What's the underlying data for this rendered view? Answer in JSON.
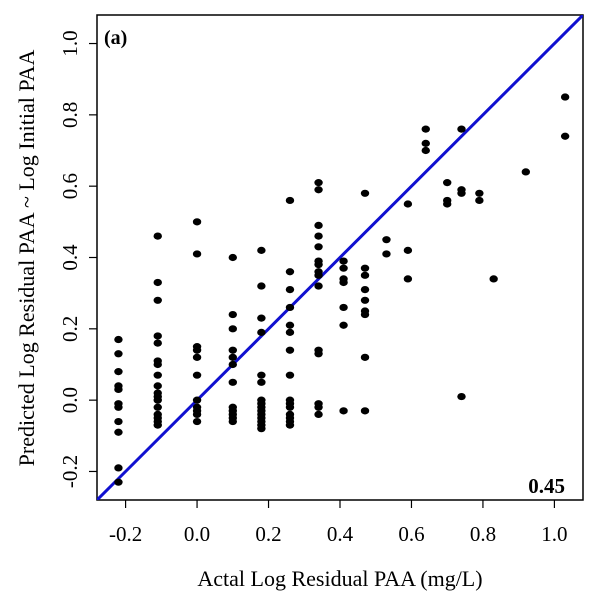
{
  "chart_data": {
    "type": "scatter",
    "panel_label": "(a)",
    "annotation": "0.45",
    "xlabel": "Actal Log Residual PAA (mg/L)",
    "ylabel": "Predicted Log Residual PAA ~ Log Initial PAA",
    "xlim": [
      -0.28,
      1.08
    ],
    "ylim": [
      -0.28,
      1.08
    ],
    "x_ticks": [
      -0.2,
      0.0,
      0.2,
      0.4,
      0.6,
      0.8,
      1.0
    ],
    "x_tick_labels": [
      "-0.2",
      "0.0",
      "0.2",
      "0.4",
      "0.6",
      "0.8",
      "1.0"
    ],
    "y_ticks": [
      -0.2,
      0.0,
      0.2,
      0.4,
      0.6,
      0.8,
      1.0
    ],
    "y_tick_labels": [
      "-0.2",
      "0.0",
      "0.2",
      "0.4",
      "0.6",
      "0.8",
      "1.0"
    ],
    "grid": false,
    "reference_line": {
      "name": "1:1 line",
      "color": "#1010d0",
      "x": [
        -0.28,
        1.08
      ],
      "y": [
        -0.28,
        1.08
      ]
    },
    "point_color": "#000000",
    "points": [
      [
        -0.22,
        0.17
      ],
      [
        -0.22,
        0.13
      ],
      [
        -0.22,
        0.08
      ],
      [
        -0.22,
        0.04
      ],
      [
        -0.22,
        0.03
      ],
      [
        -0.22,
        -0.01
      ],
      [
        -0.22,
        -0.02
      ],
      [
        -0.22,
        -0.06
      ],
      [
        -0.22,
        -0.09
      ],
      [
        -0.22,
        -0.19
      ],
      [
        -0.22,
        -0.23
      ],
      [
        -0.11,
        0.46
      ],
      [
        -0.11,
        0.33
      ],
      [
        -0.11,
        0.28
      ],
      [
        -0.11,
        0.18
      ],
      [
        -0.11,
        0.16
      ],
      [
        -0.11,
        0.11
      ],
      [
        -0.11,
        0.1
      ],
      [
        -0.11,
        0.07
      ],
      [
        -0.11,
        0.04
      ],
      [
        -0.11,
        0.02
      ],
      [
        -0.11,
        0.01
      ],
      [
        -0.11,
        0.0
      ],
      [
        -0.11,
        -0.02
      ],
      [
        -0.11,
        -0.04
      ],
      [
        -0.11,
        -0.05
      ],
      [
        -0.11,
        -0.06
      ],
      [
        -0.11,
        -0.07
      ],
      [
        0.0,
        0.5
      ],
      [
        0.0,
        0.41
      ],
      [
        0.0,
        0.15
      ],
      [
        0.0,
        0.14
      ],
      [
        0.0,
        0.12
      ],
      [
        0.0,
        0.07
      ],
      [
        0.0,
        0.0
      ],
      [
        0.0,
        -0.02
      ],
      [
        0.0,
        -0.03
      ],
      [
        0.0,
        -0.04
      ],
      [
        0.0,
        -0.06
      ],
      [
        0.1,
        0.4
      ],
      [
        0.1,
        0.24
      ],
      [
        0.1,
        0.2
      ],
      [
        0.1,
        0.14
      ],
      [
        0.1,
        0.12
      ],
      [
        0.1,
        0.1
      ],
      [
        0.1,
        0.05
      ],
      [
        0.1,
        -0.02
      ],
      [
        0.1,
        -0.03
      ],
      [
        0.1,
        -0.04
      ],
      [
        0.1,
        -0.05
      ],
      [
        0.1,
        -0.06
      ],
      [
        0.18,
        0.42
      ],
      [
        0.18,
        0.32
      ],
      [
        0.18,
        0.23
      ],
      [
        0.18,
        0.19
      ],
      [
        0.18,
        0.07
      ],
      [
        0.18,
        0.05
      ],
      [
        0.18,
        0.0
      ],
      [
        0.18,
        -0.01
      ],
      [
        0.18,
        -0.02
      ],
      [
        0.18,
        -0.03
      ],
      [
        0.18,
        -0.04
      ],
      [
        0.18,
        -0.05
      ],
      [
        0.18,
        -0.06
      ],
      [
        0.18,
        -0.07
      ],
      [
        0.18,
        -0.08
      ],
      [
        0.26,
        0.56
      ],
      [
        0.26,
        0.36
      ],
      [
        0.26,
        0.31
      ],
      [
        0.26,
        0.26
      ],
      [
        0.26,
        0.21
      ],
      [
        0.26,
        0.19
      ],
      [
        0.26,
        0.14
      ],
      [
        0.26,
        0.07
      ],
      [
        0.26,
        0.0
      ],
      [
        0.26,
        -0.01
      ],
      [
        0.26,
        -0.02
      ],
      [
        0.26,
        -0.04
      ],
      [
        0.26,
        -0.05
      ],
      [
        0.26,
        -0.06
      ],
      [
        0.26,
        -0.07
      ],
      [
        0.34,
        0.61
      ],
      [
        0.34,
        0.59
      ],
      [
        0.34,
        0.49
      ],
      [
        0.34,
        0.46
      ],
      [
        0.34,
        0.43
      ],
      [
        0.34,
        0.39
      ],
      [
        0.34,
        0.38
      ],
      [
        0.34,
        0.36
      ],
      [
        0.34,
        0.35
      ],
      [
        0.34,
        0.32
      ],
      [
        0.34,
        0.14
      ],
      [
        0.34,
        0.13
      ],
      [
        0.34,
        -0.01
      ],
      [
        0.34,
        -0.02
      ],
      [
        0.34,
        -0.04
      ],
      [
        0.41,
        0.39
      ],
      [
        0.41,
        0.37
      ],
      [
        0.41,
        0.34
      ],
      [
        0.41,
        0.33
      ],
      [
        0.41,
        0.26
      ],
      [
        0.41,
        0.21
      ],
      [
        0.41,
        -0.03
      ],
      [
        0.47,
        0.58
      ],
      [
        0.47,
        0.37
      ],
      [
        0.47,
        0.35
      ],
      [
        0.47,
        0.31
      ],
      [
        0.47,
        0.28
      ],
      [
        0.47,
        0.25
      ],
      [
        0.47,
        0.24
      ],
      [
        0.47,
        0.12
      ],
      [
        0.47,
        -0.03
      ],
      [
        0.53,
        0.45
      ],
      [
        0.53,
        0.41
      ],
      [
        0.59,
        0.55
      ],
      [
        0.59,
        0.42
      ],
      [
        0.59,
        0.34
      ],
      [
        0.64,
        0.76
      ],
      [
        0.64,
        0.72
      ],
      [
        0.64,
        0.7
      ],
      [
        0.7,
        0.61
      ],
      [
        0.7,
        0.56
      ],
      [
        0.7,
        0.55
      ],
      [
        0.74,
        0.76
      ],
      [
        0.74,
        0.59
      ],
      [
        0.74,
        0.58
      ],
      [
        0.74,
        0.01
      ],
      [
        0.79,
        0.58
      ],
      [
        0.79,
        0.56
      ],
      [
        0.83,
        0.34
      ],
      [
        0.92,
        0.64
      ],
      [
        1.03,
        0.85
      ],
      [
        1.03,
        0.74
      ]
    ]
  }
}
